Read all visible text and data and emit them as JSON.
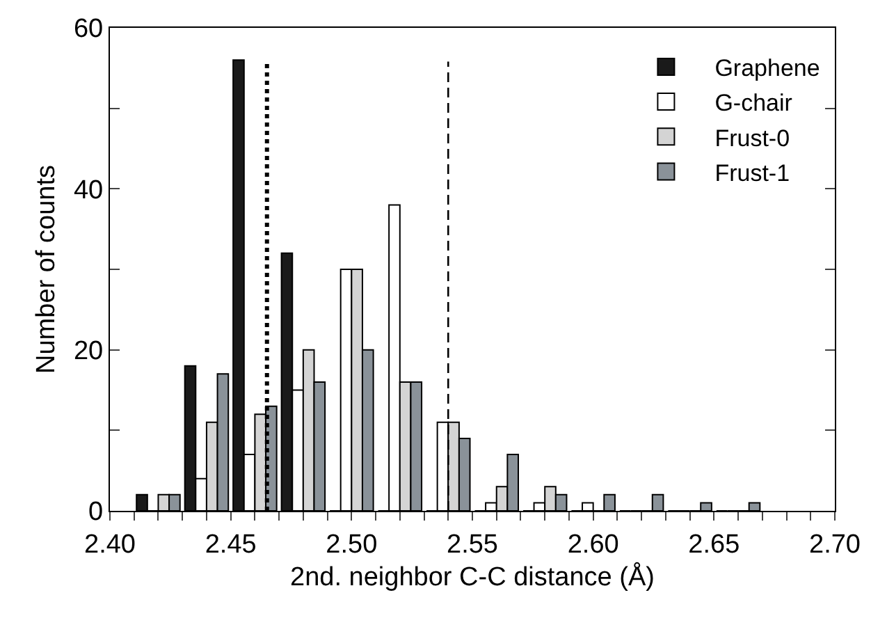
{
  "chart_data": {
    "type": "bar",
    "xlabel": "2nd. neighbor C-C distance (Å)",
    "ylabel": "Number of counts",
    "x": [
      2.42,
      2.44,
      2.46,
      2.48,
      2.5,
      2.52,
      2.54,
      2.56,
      2.58,
      2.6,
      2.62,
      2.64,
      2.66
    ],
    "series": [
      {
        "name": "Graphene",
        "color": "#1a1a1a",
        "values": [
          2,
          18,
          56,
          32,
          0,
          0,
          0,
          0,
          0,
          0,
          0,
          0,
          0
        ]
      },
      {
        "name": "G-chair",
        "color": "#ffffff",
        "values": [
          0,
          4,
          7,
          15,
          30,
          38,
          11,
          1,
          1,
          1,
          0,
          0,
          0
        ]
      },
      {
        "name": "Frust-0",
        "color": "#d4d4d4",
        "values": [
          2,
          11,
          12,
          20,
          30,
          16,
          11,
          3,
          3,
          0,
          0,
          0,
          0
        ]
      },
      {
        "name": "Frust-1",
        "color": "#8a9299",
        "values": [
          2,
          17,
          13,
          16,
          20,
          16,
          9,
          7,
          2,
          2,
          2,
          1,
          1
        ]
      }
    ],
    "xlim": [
      2.4,
      2.7
    ],
    "xticks": [
      {
        "value": 2.4,
        "label": "2.40"
      },
      {
        "value": 2.41,
        "label": null
      },
      {
        "value": 2.42,
        "label": null
      },
      {
        "value": 2.43,
        "label": null
      },
      {
        "value": 2.44,
        "label": null
      },
      {
        "value": 2.45,
        "label": "2.45"
      },
      {
        "value": 2.46,
        "label": null
      },
      {
        "value": 2.47,
        "label": null
      },
      {
        "value": 2.48,
        "label": null
      },
      {
        "value": 2.49,
        "label": null
      },
      {
        "value": 2.5,
        "label": "2.50"
      },
      {
        "value": 2.51,
        "label": null
      },
      {
        "value": 2.52,
        "label": null
      },
      {
        "value": 2.53,
        "label": null
      },
      {
        "value": 2.54,
        "label": null
      },
      {
        "value": 2.55,
        "label": "2.55"
      },
      {
        "value": 2.56,
        "label": null
      },
      {
        "value": 2.57,
        "label": null
      },
      {
        "value": 2.58,
        "label": null
      },
      {
        "value": 2.59,
        "label": null
      },
      {
        "value": 2.6,
        "label": "2.60"
      },
      {
        "value": 2.61,
        "label": null
      },
      {
        "value": 2.62,
        "label": null
      },
      {
        "value": 2.63,
        "label": null
      },
      {
        "value": 2.64,
        "label": null
      },
      {
        "value": 2.65,
        "label": "2.65"
      },
      {
        "value": 2.66,
        "label": null
      },
      {
        "value": 2.67,
        "label": null
      },
      {
        "value": 2.68,
        "label": null
      },
      {
        "value": 2.69,
        "label": null
      },
      {
        "value": 2.7,
        "label": "2.70"
      }
    ],
    "ylim": [
      0,
      60
    ],
    "yticks": [
      0,
      {
        "value": 10,
        "label": null
      },
      20,
      {
        "value": 30,
        "label": null
      },
      40,
      {
        "value": 50,
        "label": null
      },
      60
    ],
    "ref_lines": [
      {
        "axis": "x",
        "value": 2.465,
        "line_style": "dotted",
        "color": "#000000"
      },
      {
        "axis": "x",
        "value": 2.54,
        "line_style": "dashed",
        "color": "#000000"
      }
    ],
    "grid": false,
    "legend": "top right"
  }
}
